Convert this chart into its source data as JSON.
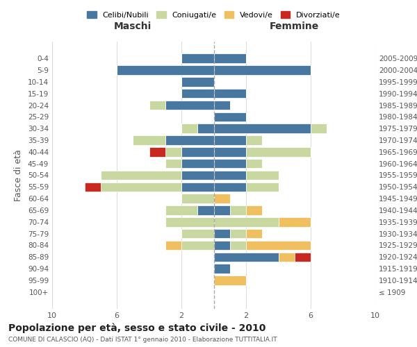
{
  "age_groups": [
    "100+",
    "95-99",
    "90-94",
    "85-89",
    "80-84",
    "75-79",
    "70-74",
    "65-69",
    "60-64",
    "55-59",
    "50-54",
    "45-49",
    "40-44",
    "35-39",
    "30-34",
    "25-29",
    "20-24",
    "15-19",
    "10-14",
    "5-9",
    "0-4"
  ],
  "birth_years": [
    "≤ 1909",
    "1910-1914",
    "1915-1919",
    "1920-1924",
    "1925-1929",
    "1930-1934",
    "1935-1939",
    "1940-1944",
    "1945-1949",
    "1950-1954",
    "1955-1959",
    "1960-1964",
    "1965-1969",
    "1970-1974",
    "1975-1979",
    "1980-1984",
    "1985-1989",
    "1990-1994",
    "1995-1999",
    "2000-2004",
    "2005-2009"
  ],
  "male": {
    "celibi": [
      0,
      0,
      0,
      0,
      0,
      0,
      0,
      1,
      0,
      2,
      2,
      2,
      2,
      3,
      1,
      0,
      3,
      2,
      2,
      6,
      2
    ],
    "coniugati": [
      0,
      0,
      0,
      0,
      2,
      2,
      3,
      2,
      2,
      5,
      5,
      1,
      1,
      2,
      1,
      0,
      1,
      0,
      0,
      0,
      0
    ],
    "vedovi": [
      0,
      0,
      0,
      0,
      1,
      0,
      0,
      0,
      0,
      0,
      0,
      0,
      0,
      0,
      0,
      0,
      0,
      0,
      0,
      0,
      0
    ],
    "divorziati": [
      0,
      0,
      0,
      0,
      0,
      0,
      0,
      0,
      0,
      1,
      0,
      0,
      1,
      0,
      0,
      0,
      0,
      0,
      0,
      0,
      0
    ]
  },
  "female": {
    "celibi": [
      0,
      0,
      1,
      4,
      1,
      1,
      0,
      1,
      0,
      2,
      2,
      2,
      2,
      2,
      6,
      2,
      1,
      2,
      0,
      6,
      2
    ],
    "coniugati": [
      0,
      0,
      0,
      0,
      1,
      1,
      4,
      1,
      0,
      2,
      2,
      1,
      4,
      1,
      1,
      0,
      0,
      0,
      0,
      0,
      0
    ],
    "vedovi": [
      0,
      2,
      0,
      1,
      4,
      1,
      2,
      1,
      1,
      0,
      0,
      0,
      0,
      0,
      0,
      0,
      0,
      0,
      0,
      0,
      0
    ],
    "divorziati": [
      0,
      0,
      0,
      1,
      0,
      0,
      0,
      0,
      0,
      0,
      0,
      0,
      0,
      0,
      0,
      0,
      0,
      0,
      0,
      0,
      0
    ]
  },
  "colors": {
    "celibi": "#4878a0",
    "coniugati": "#c8d8a0",
    "vedovi": "#f0c060",
    "divorziati": "#c82820"
  },
  "legend_labels": [
    "Celibi/Nubili",
    "Coniugati/e",
    "Vedovi/e",
    "Divorziati/e"
  ],
  "title": "Popolazione per età, sesso e stato civile - 2010",
  "subtitle": "COMUNE DI CALASCIO (AQ) - Dati ISTAT 1° gennaio 2010 - Elaborazione TUTTITALIA.IT",
  "xlabel_left": "Maschi",
  "xlabel_right": "Femmine",
  "ylabel_left": "Fasce di età",
  "xlim": 10,
  "background_color": "#ffffff",
  "grid_color": "#dddddd"
}
